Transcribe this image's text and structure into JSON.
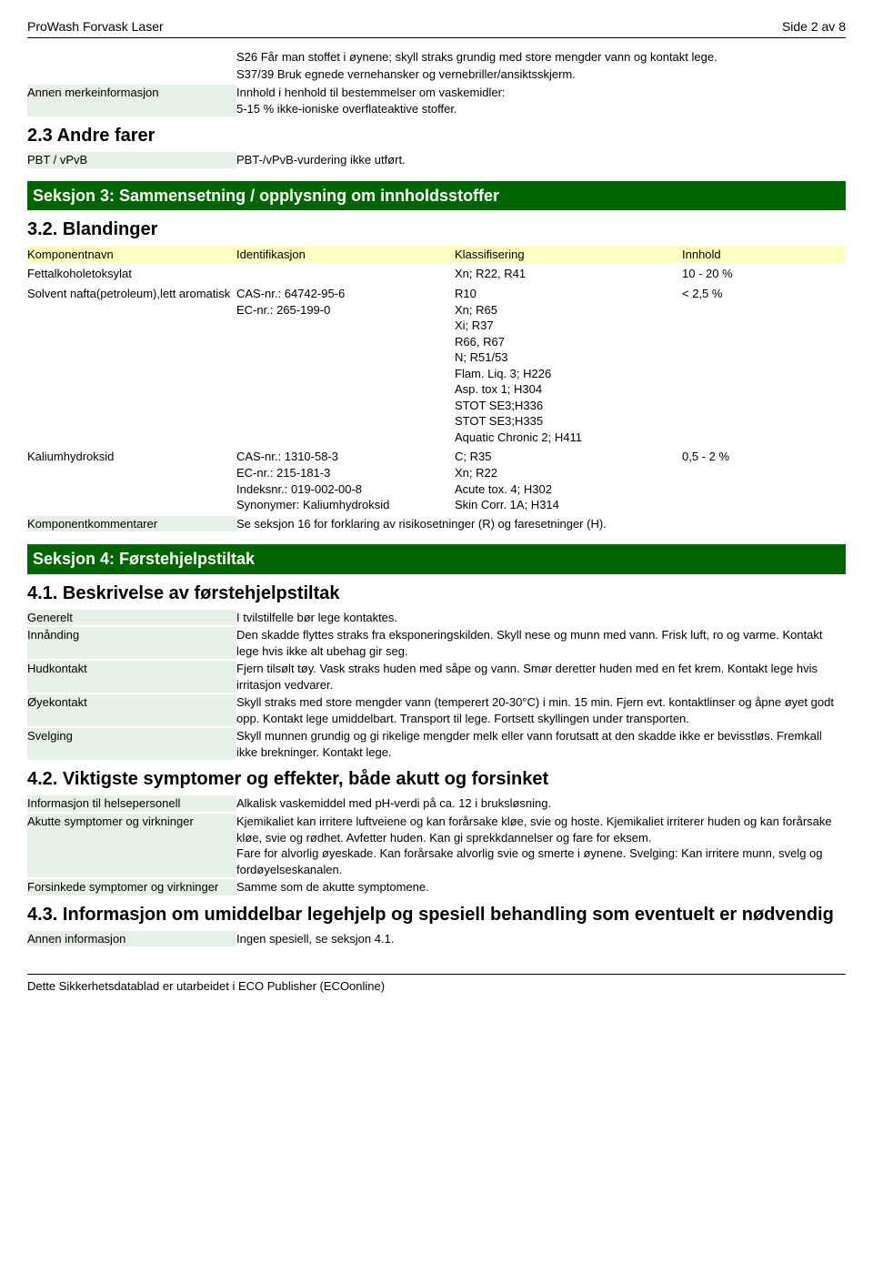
{
  "header": {
    "title": "ProWash Forvask Laser",
    "page": "Side 2 av 8"
  },
  "sec2_phrases": {
    "s26": "S26 Får man stoffet i øynene; skyll straks grundig med store mengder vann og kontakt lege.",
    "s37": "S37/39 Bruk egnede vernehansker og vernebriller/ansiktsskjerm.",
    "annen_label": "Annen merkeinformasjon",
    "annen_val": "Innhold i henhold til bestemmelser om vaskemidler:\n5-15 % ikke-ioniske overflateaktive stoffer.",
    "andre_farer": "2.3 Andre farer",
    "pbt_label": "PBT / vPvB",
    "pbt_val": "PBT-/vPvB-vurdering ikke utført."
  },
  "sec3": {
    "banner": "Seksjon 3: Sammensetning / opplysning om innholdsstoffer",
    "sub": "3.2. Blandinger",
    "headers": {
      "c1": "Komponentnavn",
      "c2": "Identifikasjon",
      "c3": "Klassifisering",
      "c4": "Innhold"
    },
    "rows": [
      {
        "name": "Fettalkoholetoksylat",
        "id": "",
        "klass": "Xn; R22, R41",
        "innhold": "10 - 20 %"
      },
      {
        "name": "Solvent nafta(petroleum),lett aromatisk",
        "id": "CAS-nr.: 64742-95-6\nEC-nr.: 265-199-0",
        "klass": "R10\nXn; R65\nXi; R37\nR66, R67\nN; R51/53\nFlam. Liq. 3; H226\nAsp. tox 1; H304\nSTOT SE3;H336\nSTOT SE3;H335\nAquatic Chronic 2; H411",
        "innhold": "< 2,5 %"
      },
      {
        "name": "Kaliumhydroksid",
        "id": "CAS-nr.: 1310-58-3\nEC-nr.: 215-181-3\nIndeksnr.: 019-002-00-8\nSynonymer: Kaliumhydroksid",
        "klass": "C; R35\nXn; R22\nAcute tox. 4; H302\nSkin Corr. 1A; H314",
        "innhold": "0,5 - 2 %"
      }
    ],
    "komment_label": "Komponentkommentarer",
    "komment_val": "Se seksjon 16 for forklaring av risikosetninger (R) og faresetninger (H)."
  },
  "sec4": {
    "banner": "Seksjon 4: Førstehjelpstiltak",
    "sub1": "4.1. Beskrivelse av førstehjelpstiltak",
    "items1": [
      {
        "label": "Generelt",
        "val": "I tvilstilfelle bør lege kontaktes."
      },
      {
        "label": "Innånding",
        "val": "Den skadde flyttes straks fra eksponeringskilden. Skyll nese og munn med vann. Frisk luft, ro og varme. Kontakt lege hvis ikke alt ubehag gir seg."
      },
      {
        "label": "Hudkontakt",
        "val": "Fjern tilsølt tøy. Vask straks huden med såpe og vann. Smør deretter huden med en fet krem. Kontakt lege hvis irritasjon vedvarer."
      },
      {
        "label": "Øyekontakt",
        "val": "Skyll straks med store mengder vann (temperert 20-30°C) i min. 15 min. Fjern evt. kontaktlinser og åpne øyet godt opp. Kontakt lege umiddelbart. Transport til lege. Fortsett skyllingen under transporten."
      },
      {
        "label": "Svelging",
        "val": "Skyll munnen grundig og gi rikelige mengder melk eller vann forutsatt at den skadde ikke er bevisstløs. Fremkall ikke brekninger. Kontakt lege."
      }
    ],
    "sub2": "4.2. Viktigste symptomer og effekter, både akutt og forsinket",
    "items2": [
      {
        "label": "Informasjon til helsepersonell",
        "val": "Alkalisk vaskemiddel med pH-verdi på ca. 12 i bruksløsning."
      },
      {
        "label": "Akutte symptomer og virkninger",
        "val": "Kjemikaliet kan irritere luftveiene og kan forårsake kløe, svie og hoste. Kjemikaliet irriterer huden og kan forårsake kløe, svie og rødhet. Avfetter huden. Kan gi sprekkdannelser og fare for eksem.\nFare for alvorlig øyeskade. Kan forårsake alvorlig svie og smerte i øynene. Svelging: Kan irritere munn, svelg og fordøyelseskanalen."
      },
      {
        "label": "Forsinkede symptomer og virkninger",
        "val": "Samme som de akutte symptomene."
      }
    ],
    "sub3": "4.3. Informasjon om umiddelbar legehjelp og spesiell behandling som eventuelt er nødvendig",
    "items3": [
      {
        "label": "Annen informasjon",
        "val": "Ingen spesiell, se seksjon 4.1."
      }
    ]
  },
  "footer": "Dette Sikkerhetsdatablad er utarbeidet i ECO Publisher (ECOonline)"
}
